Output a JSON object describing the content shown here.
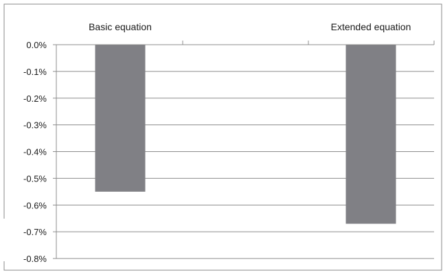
{
  "chart_data": {
    "type": "bar",
    "categories": [
      "Basic equation",
      "Extended equation"
    ],
    "values": [
      -0.55,
      -0.67
    ],
    "title": "",
    "xlabel": "",
    "ylabel": "",
    "ylim": [
      -0.8,
      0.0
    ],
    "yticks": [
      "0.0%",
      "-0.1%",
      "-0.2%",
      "-0.3%",
      "-0.4%",
      "-0.5%",
      "-0.6%",
      "-0.7%",
      "-0.8%"
    ],
    "grid": true,
    "legend": "none",
    "bar_color": "#808085",
    "gridline_color": "#8c8c8c",
    "axis_color": "#8c8c8c",
    "border_color": "#8a8a8a"
  }
}
